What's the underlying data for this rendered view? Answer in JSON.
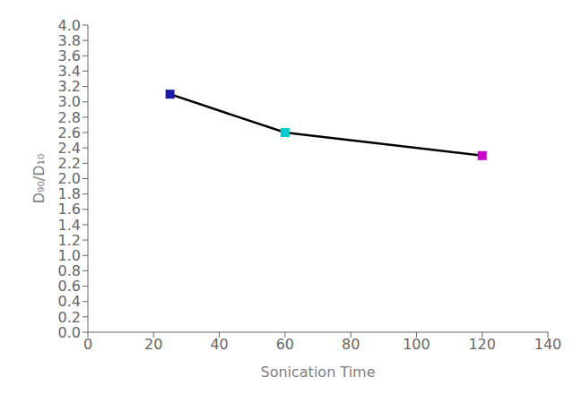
{
  "chart_data": {
    "type": "line",
    "x": [
      25,
      60,
      120
    ],
    "values": [
      3.1,
      2.6,
      2.3
    ],
    "color": "#000000",
    "colors": [
      "#1a1aaa",
      "#00cccc",
      "#cc00cc"
    ],
    "marker": "square",
    "xlabel": "Sonication Time",
    "ylabel": "D₉₀/D₁₀",
    "xlim": [
      0,
      140
    ],
    "ylim": [
      0.0,
      4.0
    ],
    "xticks": [
      0,
      20,
      40,
      60,
      80,
      100,
      120,
      140
    ],
    "yticks": [
      {
        "value": 0,
        "label": "0.0"
      },
      0.2,
      0.4,
      0.6,
      0.8,
      {
        "value": 1,
        "label": "1.0"
      },
      1.2,
      1.4,
      1.6,
      1.8,
      {
        "value": 2,
        "label": "2.0"
      },
      2.2,
      2.4,
      2.6,
      2.8,
      {
        "value": 3,
        "label": "3.0"
      },
      3.2,
      3.4,
      3.6,
      3.8,
      {
        "value": 4,
        "label": "4.0"
      }
    ],
    "grid": false
  }
}
